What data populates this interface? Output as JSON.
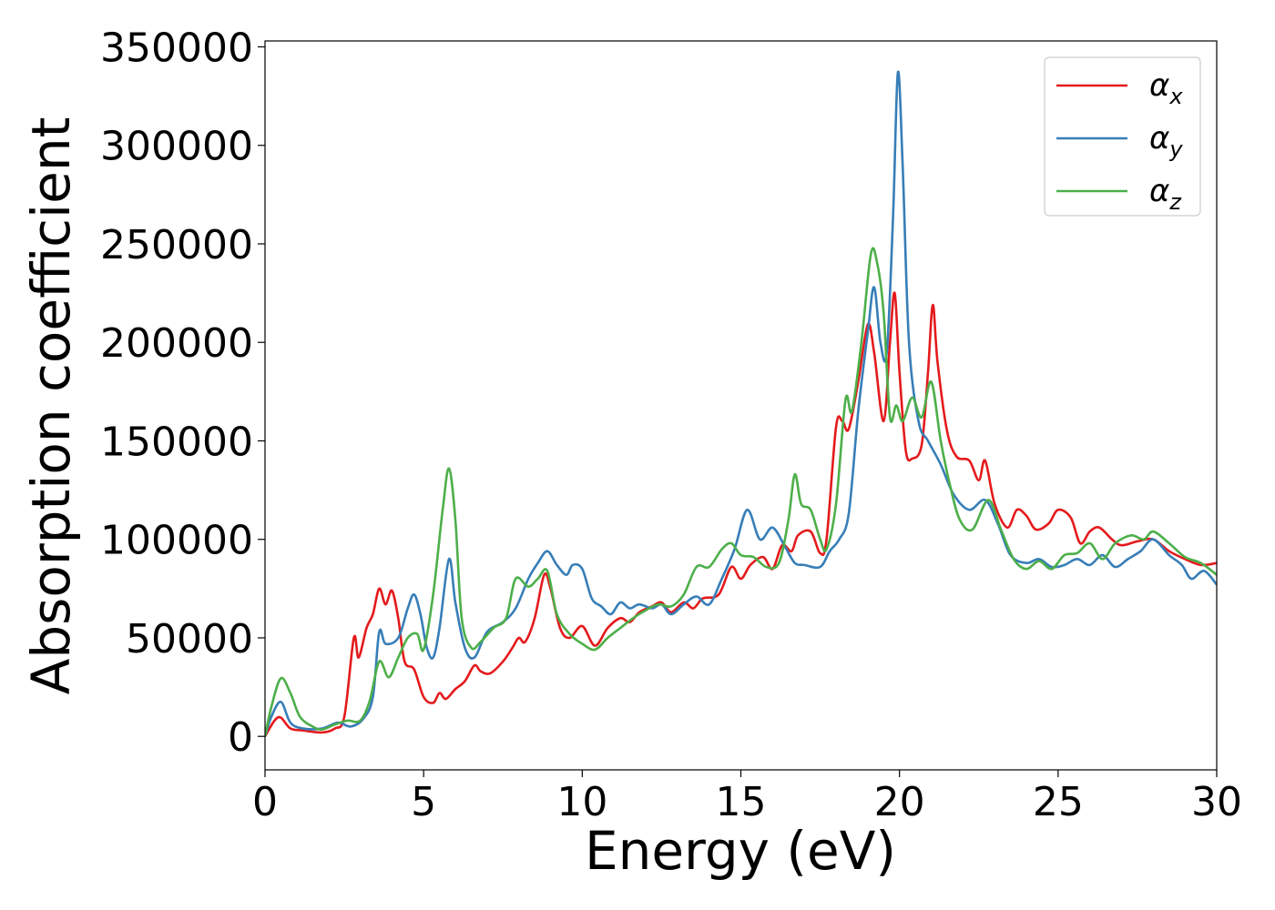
{
  "chart_data": {
    "type": "line",
    "title": "",
    "xlabel": "Energy (eV)",
    "ylabel": "Absorption coefficient",
    "xlim": [
      0,
      30
    ],
    "ylim": [
      -17000,
      353000
    ],
    "xticks": [
      0,
      5,
      10,
      15,
      20,
      25,
      30
    ],
    "yticks": [
      0,
      50000,
      100000,
      150000,
      200000,
      250000,
      300000,
      350000
    ],
    "grid": false,
    "legend_position": "top-right",
    "series": [
      {
        "name": "α",
        "subscript": "x",
        "color": "#e41a1c",
        "points": [
          [
            0,
            0
          ],
          [
            0.3,
            8000
          ],
          [
            0.5,
            9500
          ],
          [
            0.8,
            4000
          ],
          [
            1.2,
            3000
          ],
          [
            1.8,
            2000
          ],
          [
            2.2,
            4000
          ],
          [
            2.5,
            10000
          ],
          [
            2.8,
            50000
          ],
          [
            2.95,
            40000
          ],
          [
            3.2,
            55000
          ],
          [
            3.4,
            62000
          ],
          [
            3.6,
            75000
          ],
          [
            3.8,
            67000
          ],
          [
            4.0,
            74000
          ],
          [
            4.2,
            60000
          ],
          [
            4.4,
            38000
          ],
          [
            4.7,
            34000
          ],
          [
            5.0,
            20000
          ],
          [
            5.3,
            17000
          ],
          [
            5.5,
            22000
          ],
          [
            5.7,
            19000
          ],
          [
            6.0,
            24000
          ],
          [
            6.3,
            28000
          ],
          [
            6.6,
            36000
          ],
          [
            6.8,
            33000
          ],
          [
            7.1,
            32000
          ],
          [
            7.5,
            38000
          ],
          [
            7.8,
            45000
          ],
          [
            8.0,
            50000
          ],
          [
            8.2,
            48000
          ],
          [
            8.5,
            60000
          ],
          [
            8.8,
            82000
          ],
          [
            9.0,
            75000
          ],
          [
            9.3,
            55000
          ],
          [
            9.6,
            50000
          ],
          [
            10.0,
            56000
          ],
          [
            10.4,
            46000
          ],
          [
            10.8,
            55000
          ],
          [
            11.2,
            60000
          ],
          [
            11.5,
            58000
          ],
          [
            11.8,
            63000
          ],
          [
            12.2,
            66000
          ],
          [
            12.5,
            68000
          ],
          [
            12.8,
            63000
          ],
          [
            13.2,
            68000
          ],
          [
            13.5,
            65000
          ],
          [
            13.8,
            70000
          ],
          [
            14.3,
            72000
          ],
          [
            14.7,
            86000
          ],
          [
            15.0,
            80000
          ],
          [
            15.3,
            87000
          ],
          [
            15.7,
            91000
          ],
          [
            16.0,
            85000
          ],
          [
            16.3,
            97000
          ],
          [
            16.6,
            94000
          ],
          [
            16.8,
            102000
          ],
          [
            17.2,
            104000
          ],
          [
            17.5,
            93000
          ],
          [
            17.7,
            100000
          ],
          [
            18.0,
            157000
          ],
          [
            18.2,
            160000
          ],
          [
            18.4,
            156000
          ],
          [
            18.7,
            180000
          ],
          [
            19.0,
            209000
          ],
          [
            19.2,
            195000
          ],
          [
            19.5,
            160000
          ],
          [
            19.7,
            200000
          ],
          [
            19.85,
            225000
          ],
          [
            20.0,
            185000
          ],
          [
            20.2,
            145000
          ],
          [
            20.4,
            141000
          ],
          [
            20.7,
            148000
          ],
          [
            20.9,
            185000
          ],
          [
            21.05,
            219000
          ],
          [
            21.2,
            190000
          ],
          [
            21.5,
            155000
          ],
          [
            21.8,
            142000
          ],
          [
            22.2,
            140000
          ],
          [
            22.5,
            130000
          ],
          [
            22.7,
            140000
          ],
          [
            23.0,
            118000
          ],
          [
            23.4,
            106000
          ],
          [
            23.7,
            115000
          ],
          [
            24.0,
            112000
          ],
          [
            24.3,
            105000
          ],
          [
            24.7,
            108000
          ],
          [
            25.0,
            115000
          ],
          [
            25.4,
            111000
          ],
          [
            25.7,
            98000
          ],
          [
            26.0,
            104000
          ],
          [
            26.3,
            106000
          ],
          [
            26.7,
            100000
          ],
          [
            27.0,
            97000
          ],
          [
            27.5,
            99000
          ],
          [
            28.0,
            100000
          ],
          [
            28.5,
            94000
          ],
          [
            29.0,
            90000
          ],
          [
            29.5,
            87000
          ],
          [
            30.0,
            88000
          ]
        ]
      },
      {
        "name": "α",
        "subscript": "y",
        "color": "#377eb8",
        "points": [
          [
            0,
            0
          ],
          [
            0.2,
            10000
          ],
          [
            0.5,
            17500
          ],
          [
            0.8,
            7000
          ],
          [
            1.2,
            4000
          ],
          [
            1.8,
            4000
          ],
          [
            2.3,
            7000
          ],
          [
            2.7,
            5000
          ],
          [
            3.1,
            9000
          ],
          [
            3.4,
            20000
          ],
          [
            3.6,
            53000
          ],
          [
            3.8,
            47000
          ],
          [
            4.2,
            50000
          ],
          [
            4.5,
            65000
          ],
          [
            4.7,
            72000
          ],
          [
            4.9,
            62000
          ],
          [
            5.1,
            45000
          ],
          [
            5.3,
            40000
          ],
          [
            5.5,
            55000
          ],
          [
            5.8,
            90000
          ],
          [
            6.0,
            68000
          ],
          [
            6.3,
            45000
          ],
          [
            6.6,
            40000
          ],
          [
            7.0,
            53000
          ],
          [
            7.5,
            58000
          ],
          [
            7.9,
            65000
          ],
          [
            8.3,
            80000
          ],
          [
            8.6,
            88000
          ],
          [
            8.9,
            94000
          ],
          [
            9.2,
            87000
          ],
          [
            9.5,
            82000
          ],
          [
            9.7,
            87000
          ],
          [
            10.0,
            85000
          ],
          [
            10.3,
            70000
          ],
          [
            10.6,
            66000
          ],
          [
            10.9,
            62000
          ],
          [
            11.2,
            68000
          ],
          [
            11.5,
            65000
          ],
          [
            11.8,
            67000
          ],
          [
            12.2,
            65000
          ],
          [
            12.5,
            67000
          ],
          [
            12.8,
            62000
          ],
          [
            13.2,
            67000
          ],
          [
            13.6,
            71000
          ],
          [
            14.0,
            67000
          ],
          [
            14.4,
            80000
          ],
          [
            14.8,
            95000
          ],
          [
            15.2,
            115000
          ],
          [
            15.6,
            100000
          ],
          [
            16.0,
            106000
          ],
          [
            16.4,
            96000
          ],
          [
            16.7,
            88000
          ],
          [
            17.0,
            87000
          ],
          [
            17.5,
            86000
          ],
          [
            17.8,
            94000
          ],
          [
            18.1,
            100000
          ],
          [
            18.4,
            113000
          ],
          [
            18.7,
            165000
          ],
          [
            19.0,
            205000
          ],
          [
            19.2,
            228000
          ],
          [
            19.4,
            200000
          ],
          [
            19.6,
            195000
          ],
          [
            19.8,
            265000
          ],
          [
            19.95,
            337000
          ],
          [
            20.1,
            290000
          ],
          [
            20.3,
            200000
          ],
          [
            20.6,
            160000
          ],
          [
            20.9,
            150000
          ],
          [
            21.3,
            138000
          ],
          [
            21.7,
            123000
          ],
          [
            22.2,
            115000
          ],
          [
            22.7,
            120000
          ],
          [
            23.1,
            108000
          ],
          [
            23.5,
            92000
          ],
          [
            24.0,
            88000
          ],
          [
            24.4,
            90000
          ],
          [
            24.8,
            86000
          ],
          [
            25.2,
            87000
          ],
          [
            25.6,
            90000
          ],
          [
            26.0,
            87000
          ],
          [
            26.4,
            92000
          ],
          [
            26.8,
            86000
          ],
          [
            27.2,
            90000
          ],
          [
            27.6,
            94000
          ],
          [
            28.0,
            100000
          ],
          [
            28.5,
            92000
          ],
          [
            28.9,
            87000
          ],
          [
            29.2,
            80000
          ],
          [
            29.6,
            84000
          ],
          [
            30.0,
            77000
          ]
        ]
      },
      {
        "name": "α",
        "subscript": "z",
        "color": "#4daf4a",
        "points": [
          [
            0,
            0
          ],
          [
            0.2,
            15000
          ],
          [
            0.5,
            29500
          ],
          [
            0.8,
            22000
          ],
          [
            1.1,
            10000
          ],
          [
            1.5,
            5000
          ],
          [
            1.8,
            3500
          ],
          [
            2.2,
            6000
          ],
          [
            2.6,
            8000
          ],
          [
            3.0,
            8000
          ],
          [
            3.3,
            18000
          ],
          [
            3.6,
            38000
          ],
          [
            3.9,
            30000
          ],
          [
            4.2,
            40000
          ],
          [
            4.5,
            50000
          ],
          [
            4.8,
            52000
          ],
          [
            5.0,
            44000
          ],
          [
            5.3,
            72000
          ],
          [
            5.6,
            115000
          ],
          [
            5.8,
            136000
          ],
          [
            6.0,
            110000
          ],
          [
            6.2,
            60000
          ],
          [
            6.5,
            45000
          ],
          [
            6.8,
            48000
          ],
          [
            7.2,
            55000
          ],
          [
            7.6,
            60000
          ],
          [
            7.9,
            80000
          ],
          [
            8.3,
            76000
          ],
          [
            8.6,
            80000
          ],
          [
            8.9,
            84000
          ],
          [
            9.2,
            62000
          ],
          [
            9.6,
            52000
          ],
          [
            10.0,
            47000
          ],
          [
            10.4,
            44000
          ],
          [
            10.8,
            50000
          ],
          [
            11.2,
            55000
          ],
          [
            11.6,
            60000
          ],
          [
            12.0,
            64000
          ],
          [
            12.4,
            67000
          ],
          [
            12.8,
            66000
          ],
          [
            13.2,
            72000
          ],
          [
            13.6,
            86000
          ],
          [
            14.0,
            86000
          ],
          [
            14.4,
            95000
          ],
          [
            14.7,
            98000
          ],
          [
            15.0,
            92000
          ],
          [
            15.4,
            91000
          ],
          [
            15.8,
            86000
          ],
          [
            16.2,
            88000
          ],
          [
            16.5,
            110000
          ],
          [
            16.7,
            133000
          ],
          [
            16.9,
            118000
          ],
          [
            17.2,
            115000
          ],
          [
            17.5,
            100000
          ],
          [
            17.7,
            95000
          ],
          [
            18.0,
            118000
          ],
          [
            18.3,
            171000
          ],
          [
            18.5,
            165000
          ],
          [
            18.8,
            200000
          ],
          [
            19.1,
            245000
          ],
          [
            19.3,
            240000
          ],
          [
            19.5,
            215000
          ],
          [
            19.7,
            162000
          ],
          [
            19.9,
            168000
          ],
          [
            20.1,
            160000
          ],
          [
            20.4,
            172000
          ],
          [
            20.7,
            162000
          ],
          [
            21.0,
            180000
          ],
          [
            21.3,
            150000
          ],
          [
            21.6,
            127000
          ],
          [
            21.9,
            110000
          ],
          [
            22.3,
            105000
          ],
          [
            22.8,
            120000
          ],
          [
            23.2,
            105000
          ],
          [
            23.6,
            90000
          ],
          [
            24.0,
            85000
          ],
          [
            24.4,
            89000
          ],
          [
            24.8,
            85000
          ],
          [
            25.2,
            92000
          ],
          [
            25.6,
            93000
          ],
          [
            26.0,
            98000
          ],
          [
            26.4,
            90000
          ],
          [
            26.8,
            98000
          ],
          [
            27.3,
            102000
          ],
          [
            27.7,
            100000
          ],
          [
            28.0,
            104000
          ],
          [
            28.5,
            98000
          ],
          [
            29.0,
            91000
          ],
          [
            29.5,
            88000
          ],
          [
            30.0,
            82000
          ]
        ]
      }
    ]
  }
}
